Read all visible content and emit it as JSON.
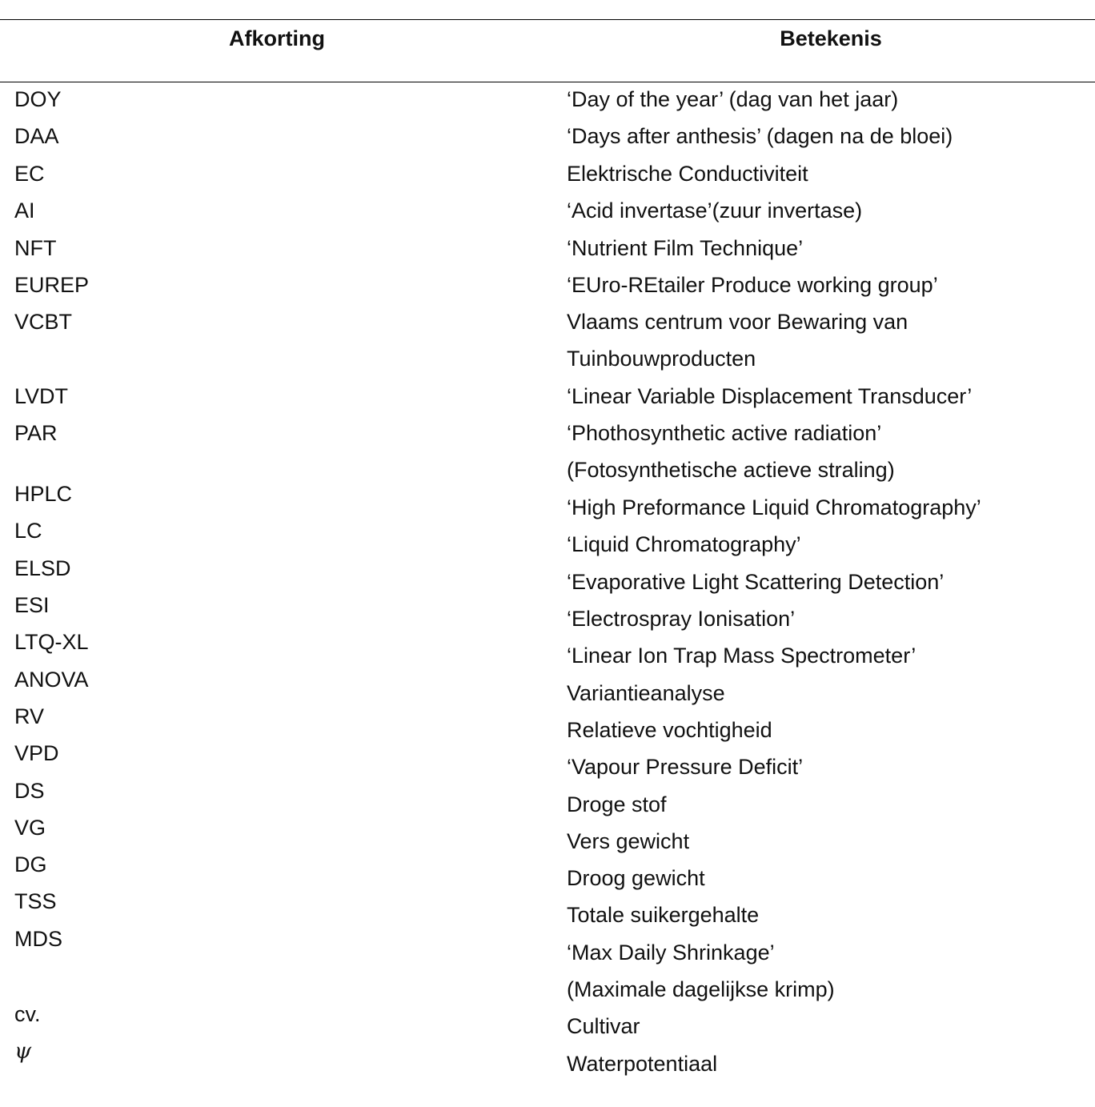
{
  "table": {
    "headers": {
      "abbreviation": "Afkorting",
      "meaning": "Betekenis"
    },
    "rows": [
      {
        "abbr": "DOY",
        "meaning": "‘Day of the year’ (dag van het jaar)"
      },
      {
        "abbr": "DAA",
        "meaning": "‘Days after anthesis’ (dagen na de bloei)"
      },
      {
        "abbr": "EC",
        "meaning": "Elektrische Conductiviteit"
      },
      {
        "abbr": "AI",
        "meaning": "‘Acid invertase’(zuur invertase)"
      },
      {
        "abbr": "NFT",
        "meaning": "‘Nutrient Film Technique’"
      },
      {
        "abbr": "EUREP",
        "meaning": "‘EUro-REtailer Produce working group’"
      },
      {
        "abbr": "VCBT",
        "meaning": "Vlaams centrum voor Bewaring van\nTuinbouwproducten"
      },
      {
        "abbr": "LVDT",
        "meaning": "‘Linear Variable Displacement Transducer’"
      },
      {
        "abbr": "PAR",
        "meaning": "‘Phothosynthetic active radiation’\n(Fotosynthetische actieve straling)"
      },
      {
        "abbr": "HPLC",
        "meaning": "‘High Preformance Liquid Chromatography’"
      },
      {
        "abbr": "LC",
        "meaning": "‘Liquid Chromatography’"
      },
      {
        "abbr": "ELSD",
        "meaning": "‘Evaporative Light Scattering Detection’"
      },
      {
        "abbr": "ESI",
        "meaning": "‘Electrospray Ionisation’"
      },
      {
        "abbr": "LTQ-XL",
        "meaning": "‘Linear Ion Trap Mass Spectrometer’"
      },
      {
        "abbr": "ANOVA",
        "meaning": "Variantieanalyse"
      },
      {
        "abbr": "RV",
        "meaning": "Relatieve vochtigheid"
      },
      {
        "abbr": "VPD",
        "meaning": "‘Vapour Pressure Deficit’"
      },
      {
        "abbr": "DS",
        "meaning": "Droge stof"
      },
      {
        "abbr": "VG",
        "meaning": "Vers gewicht"
      },
      {
        "abbr": "DG",
        "meaning": "Droog gewicht"
      },
      {
        "abbr": "TSS",
        "meaning": "Totale suikergehalte"
      },
      {
        "abbr": "MDS",
        "meaning": "‘Max Daily Shrinkage’\n(Maximale dagelijkse krimp)"
      },
      {
        "abbr": "cv.",
        "meaning": "Cultivar"
      },
      {
        "abbr": "ψ",
        "meaning": "Waterpotentiaal"
      }
    ]
  }
}
